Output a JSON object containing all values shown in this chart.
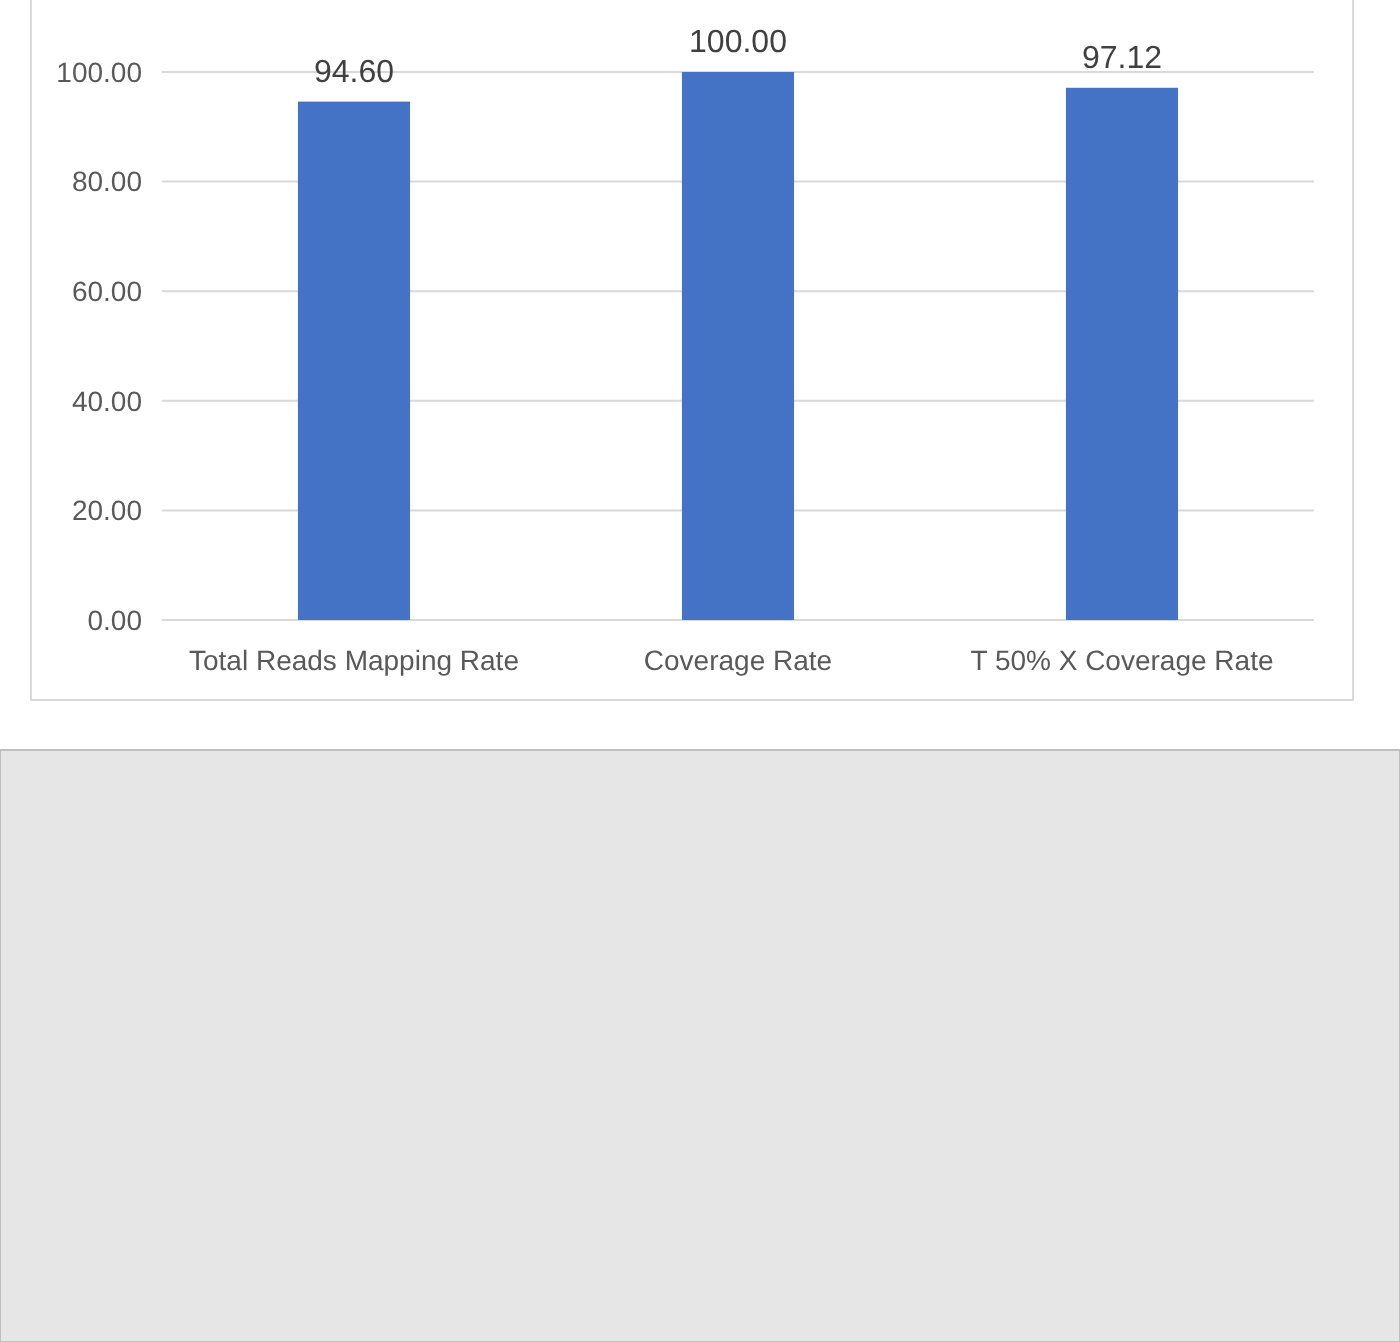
{
  "chart_data": {
    "type": "bar",
    "categories": [
      "Total Reads Mapping Rate",
      "Coverage Rate",
      "T 50% X Coverage Rate"
    ],
    "values": [
      94.6,
      100,
      97.12
    ],
    "value_labels": [
      "94.60",
      "100.00",
      "97.12"
    ],
    "color": "#4472c4",
    "ylim": [
      0,
      100
    ],
    "yticks": [
      {
        "value": 0,
        "label": "0.00"
      },
      {
        "value": 20,
        "label": "20.00"
      },
      {
        "value": 40,
        "label": "40.00"
      },
      {
        "value": 60,
        "label": "60.00"
      },
      {
        "value": 80,
        "label": "80.00"
      },
      {
        "value": 100,
        "label": "100.00"
      }
    ],
    "grid": "y"
  }
}
